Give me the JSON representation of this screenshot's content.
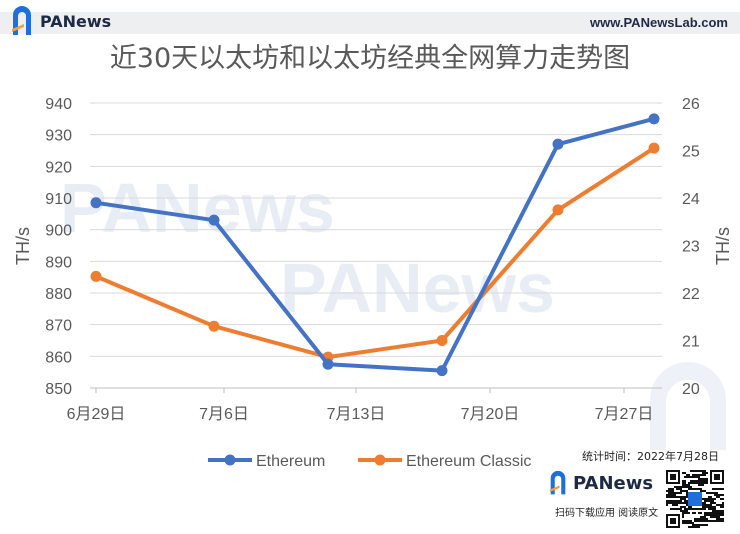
{
  "header": {
    "brand": "PANews",
    "site": "www.PANewsLab.com"
  },
  "footer": {
    "stat_label": "统计时间：",
    "stat_date": "2022年7月28日",
    "brand": "PANews",
    "scan_text": "扫码下载应用  阅读原文"
  },
  "watermark": "PANews",
  "colors": {
    "ethereum": "#4472c4",
    "ethereum_classic": "#ed7d31",
    "brand_blue": "#1e6fd9",
    "brand_orange": "#f0a23b"
  },
  "chart_data": {
    "type": "line",
    "title": "近30天以太坊和以太坊经典全网算力走势图",
    "x_ticks": [
      "6月29日",
      "7月6日",
      "7月13日",
      "7月20日",
      "7月27日"
    ],
    "x": [
      "6月29日",
      "7月6日",
      "7月11日",
      "7月17日",
      "7月23日",
      "7月27日"
    ],
    "ylabel": "TH/s",
    "y2label": "TH/s",
    "ylim": [
      850,
      940
    ],
    "yticks": [
      850,
      860,
      870,
      880,
      890,
      900,
      910,
      920,
      930,
      940
    ],
    "y2lim": [
      20,
      26
    ],
    "y2ticks": [
      20,
      21,
      22,
      23,
      24,
      25,
      26
    ],
    "grid": true,
    "legend": "bottom",
    "series": [
      {
        "name": "Ethereum",
        "axis": "left",
        "values": [
          908.5,
          903.0,
          857.5,
          855.5,
          927.0,
          935.0
        ]
      },
      {
        "name": "Ethereum Classic",
        "axis": "right",
        "values": [
          22.35,
          21.3,
          20.65,
          21.0,
          23.75,
          25.05
        ]
      }
    ]
  }
}
